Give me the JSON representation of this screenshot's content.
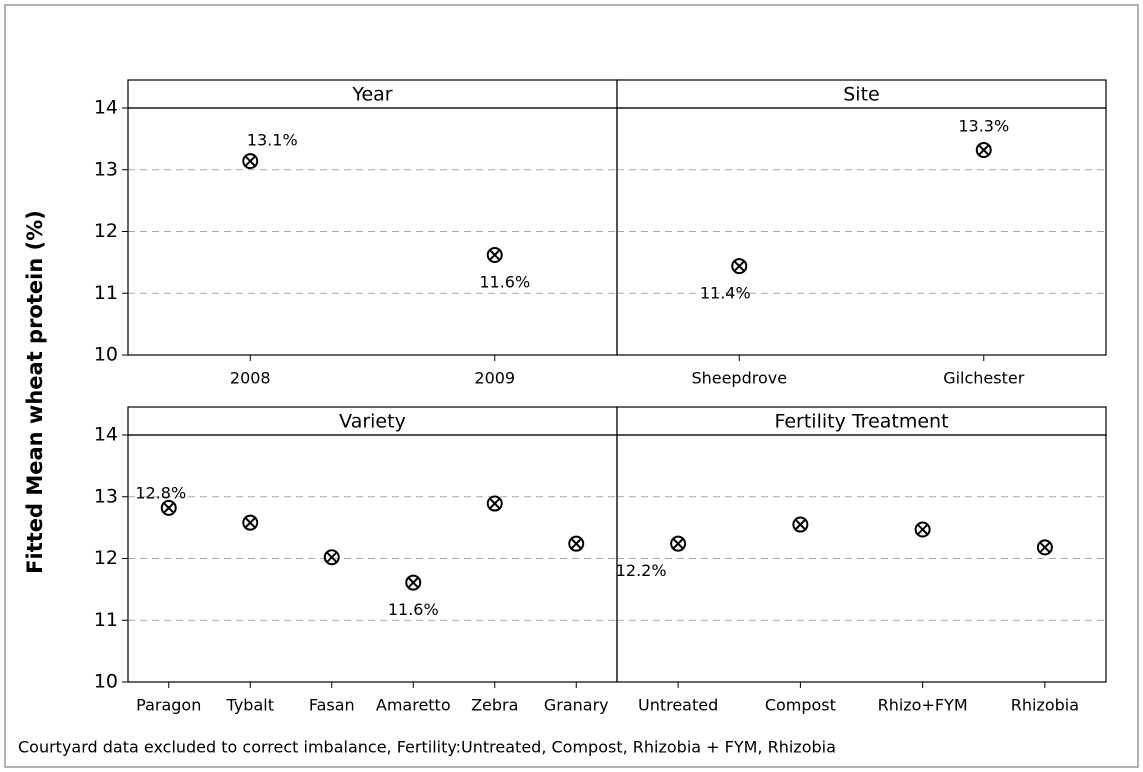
{
  "y_label": "Fitted Mean wheat protein (%)",
  "note": "Courtyard  data excluded to correct  imbalance, Fertility:Untreated, Compost, Rhizobia + FYM, Rhizobia",
  "chart_data": [
    {
      "type": "scatter",
      "title": "Year",
      "categories": [
        "2008",
        "2009"
      ],
      "values": [
        13.14,
        11.62
      ],
      "value_labels": [
        "13.1%",
        "11.6%"
      ],
      "ylim": [
        10,
        14
      ],
      "yticks": [
        10,
        11,
        12,
        13,
        14
      ],
      "grid": true,
      "color": "#000000"
    },
    {
      "type": "scatter",
      "title": "Site",
      "categories": [
        "Sheepdrove",
        "Gilchester"
      ],
      "values": [
        11.44,
        13.32
      ],
      "value_labels": [
        "11.4%",
        "13.3%"
      ],
      "ylim": [
        10,
        14
      ],
      "yticks": [
        10,
        11,
        12,
        13,
        14
      ],
      "grid": true,
      "color": "#000000"
    },
    {
      "type": "scatter",
      "title": "Variety",
      "categories": [
        "Paragon",
        "Tybalt",
        "Fasan",
        "Amaretto",
        "Zebra",
        "Granary"
      ],
      "values": [
        12.82,
        12.58,
        12.02,
        11.61,
        12.89,
        12.24
      ],
      "value_labels": [
        "12.8%",
        null,
        null,
        "11.6%",
        null,
        null
      ],
      "ylim": [
        10,
        14
      ],
      "yticks": [
        10,
        11,
        12,
        13,
        14
      ],
      "grid": true,
      "color": "#000000"
    },
    {
      "type": "scatter",
      "title": "Fertility Treatment",
      "categories": [
        "Untreated",
        "Compost",
        "Rhizo+FYM",
        "Rhizobia"
      ],
      "values": [
        12.24,
        12.55,
        12.47,
        12.18
      ],
      "value_labels": [
        "12.2%",
        null,
        null,
        null
      ],
      "ylim": [
        10,
        14
      ],
      "yticks": [
        10,
        11,
        12,
        13,
        14
      ],
      "grid": true,
      "color": "#000000"
    }
  ]
}
